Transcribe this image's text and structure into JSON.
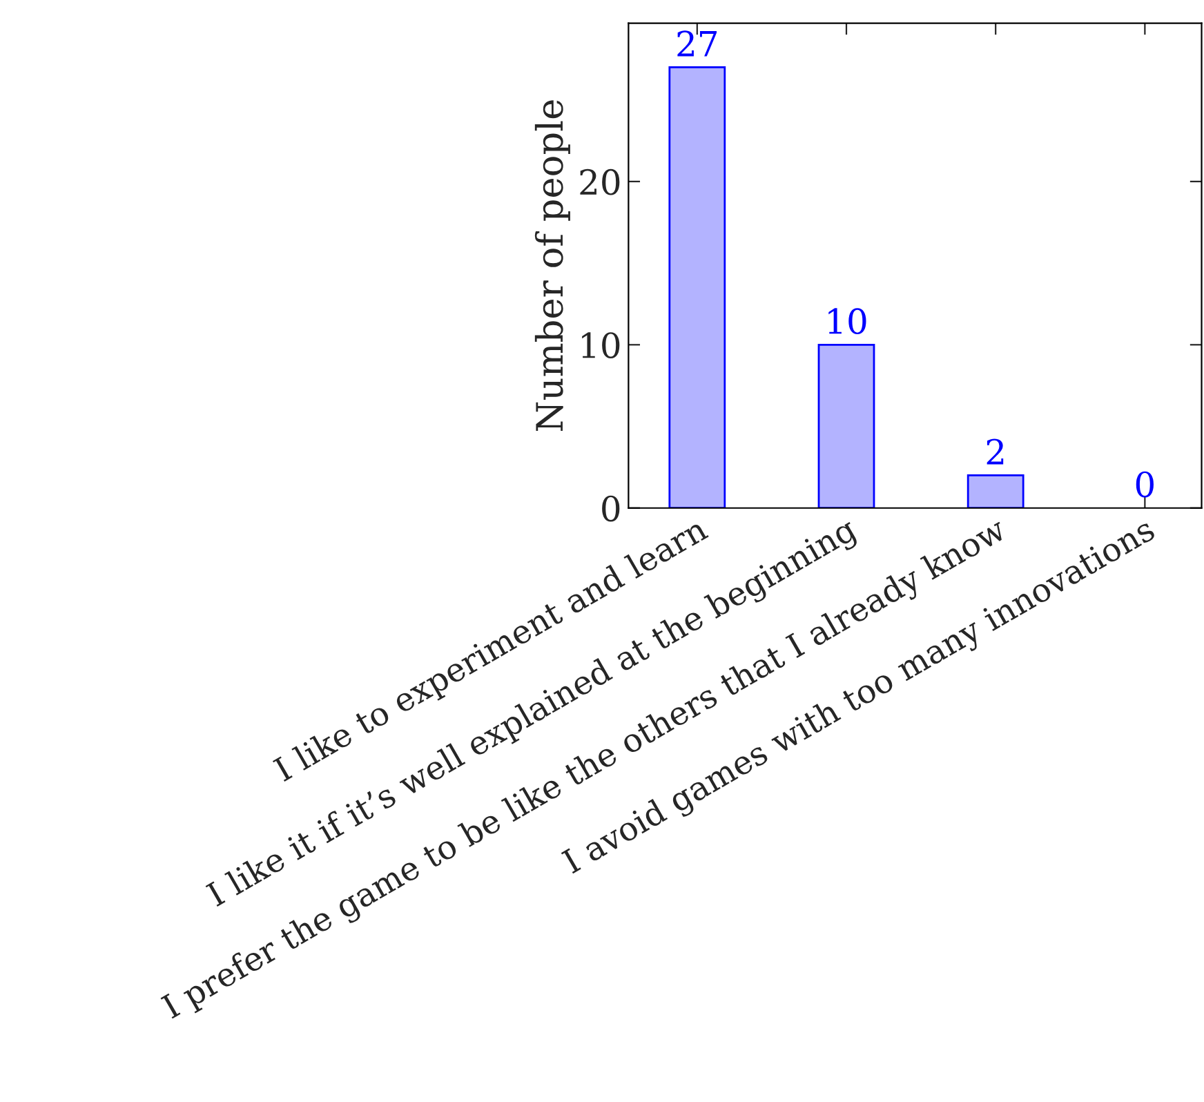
{
  "chart_data": {
    "type": "bar",
    "ylabel": "Number of people",
    "categories": [
      "I like to experiment and learn",
      "I like it if it’s well explained at the beginning",
      "I prefer the game to be like the others that I already know",
      "I avoid games with too many innovations"
    ],
    "values": [
      27,
      10,
      2,
      0
    ],
    "color": "#b3b3ff",
    "ylim": [
      0,
      29.7
    ],
    "yticks": [
      0,
      10,
      20
    ],
    "grid": false,
    "data_labels": true
  }
}
